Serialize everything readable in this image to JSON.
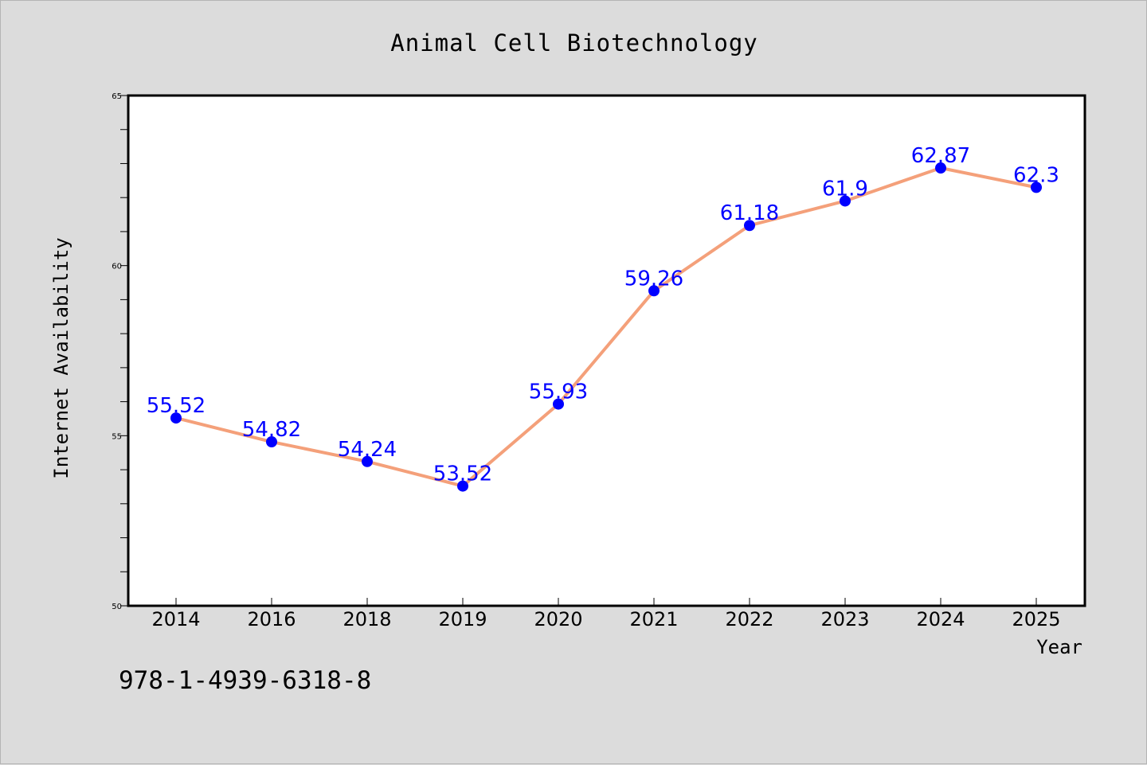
{
  "chart_data": {
    "type": "line",
    "title": "Animal Cell Biotechnology",
    "xlabel": "Year",
    "ylabel": "Internet Availability",
    "categories": [
      "2014",
      "2016",
      "2018",
      "2019",
      "2020",
      "2021",
      "2022",
      "2023",
      "2024",
      "2025"
    ],
    "series": [
      {
        "values": [
          55.52,
          54.82,
          54.24,
          53.52,
          55.93,
          59.26,
          61.18,
          61.9,
          62.87,
          62.3
        ],
        "data_labels": [
          "55.52",
          "54.82",
          "54.24",
          "53.52",
          "55.93",
          "59.26",
          "61.18",
          "61.9",
          "62.87",
          "62.3"
        ],
        "line_color": "#f4a07a",
        "marker_color": "#0000ff"
      }
    ],
    "ylim": [
      50,
      65
    ],
    "yticks": [
      "50",
      "55",
      "60",
      "65"
    ],
    "y_minor_step": 1,
    "grid": false,
    "legend": "none",
    "label_color": "#0000ff"
  },
  "annotation": "978-1-4939-6318-8"
}
